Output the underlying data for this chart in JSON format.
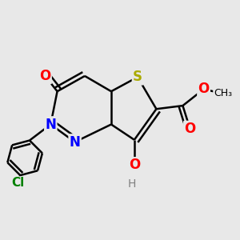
{
  "bg_color": "#e8e8e8",
  "bond_color": "#000000",
  "bond_width": 1.8,
  "atoms": {
    "S": {
      "color": "#aaaa00",
      "fontsize": 12,
      "fontweight": "bold"
    },
    "N": {
      "color": "#0000ff",
      "fontsize": 12,
      "fontweight": "bold"
    },
    "O": {
      "color": "#ff0000",
      "fontsize": 12,
      "fontweight": "bold"
    },
    "Cl": {
      "color": "#008000",
      "fontsize": 11,
      "fontweight": "bold"
    },
    "H": {
      "color": "#808080",
      "fontsize": 10,
      "fontweight": "normal"
    }
  },
  "figsize": [
    3.0,
    3.0
  ],
  "dpi": 100
}
